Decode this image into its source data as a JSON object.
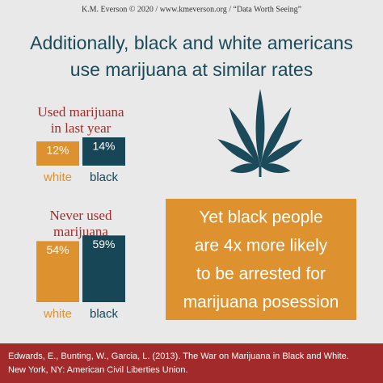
{
  "header": {
    "credit": "K.M. Everson © 2020 / www.kmeverson.org / “Data Worth Seeing”",
    "title": [
      "Additionally, black and white americans",
      "use marijuana at similar rates"
    ]
  },
  "chart_data": [
    {
      "type": "bar",
      "title": [
        "Used marijuana",
        "in last year"
      ],
      "categories": [
        "white",
        "black"
      ],
      "values": [
        12,
        14
      ],
      "value_labels": [
        "12%",
        "14%"
      ],
      "colors": [
        "#dd922f",
        "#174656"
      ]
    },
    {
      "type": "bar",
      "title": [
        "Never used",
        "marijuana"
      ],
      "categories": [
        "white",
        "black"
      ],
      "values": [
        54,
        59
      ],
      "value_labels": [
        "54%",
        "59%"
      ],
      "colors": [
        "#dd922f",
        "#174656"
      ]
    }
  ],
  "callout": [
    "Yet black people",
    "are 4x more likely",
    "to be arrested for",
    "marijuana posession"
  ],
  "source": [
    "Edwards, E., Bunting, W., Garcia, L. (2013). The War on Marijuana in Black and White.",
    "New York, NY: American Civil Liberties Union."
  ]
}
